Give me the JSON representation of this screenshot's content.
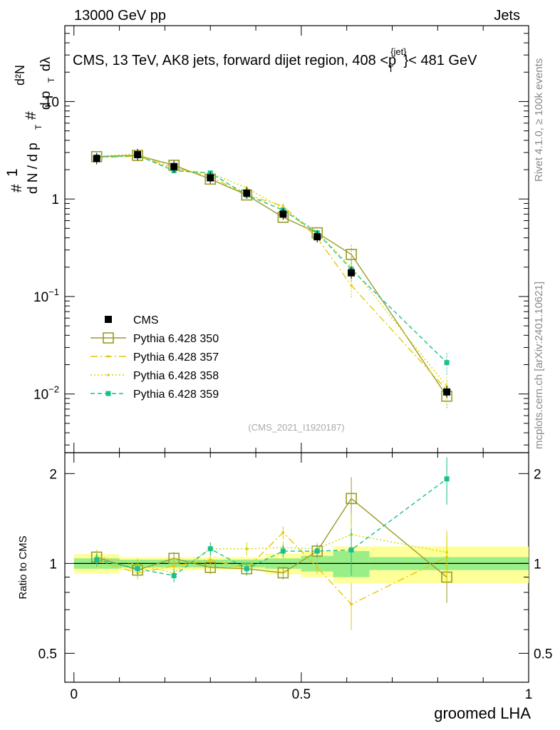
{
  "header": {
    "left": "13000 GeV pp",
    "right": "Jets"
  },
  "side": {
    "rivet": "Rivet 4.1.0, ≥ 100k events",
    "mcplots": "mcplots.cern.ch [arXiv:2401.10621]"
  },
  "analysis_tag": "(CMS_2021_I1920187)",
  "chart_data": [
    {
      "type": "line",
      "panel": "main",
      "title": "CMS, 13 TeV, AK8 jets, forward dijet region, 408 <p_T^{jet}< 481 GeV",
      "title_parts": {
        "pre": "CMS, 13 TeV, AK8 jets, forward dijet region, 408 <p",
        "sup": "{jet}",
        "sub": "T",
        "post": "}< 481 GeV"
      },
      "ylabel": "1/N dN/dp_T d²N/dp_T dλ",
      "ylabel_parts": {
        "hash": "#",
        "one": "1",
        "dN": "d N / d p",
        "dNsub": "T",
        "d2N": "d²N",
        "dpt": "d p",
        "dptsub": "T",
        "dl": "dλ"
      },
      "yscale": "log",
      "ylim": [
        0.0025,
        60
      ],
      "yticks": [
        {
          "value": 0.01,
          "base": "10",
          "exp": "−2"
        },
        {
          "value": 0.1,
          "base": "10",
          "exp": "−1"
        },
        {
          "value": 1,
          "base": "1",
          "exp": ""
        },
        {
          "value": 10,
          "base": "10",
          "exp": ""
        }
      ],
      "xlim": [
        -0.02,
        1.0
      ],
      "legend_position": "lower-left",
      "series": [
        {
          "name": "CMS",
          "style": "data",
          "color": "#000000",
          "x": [
            0.05,
            0.14,
            0.22,
            0.3,
            0.38,
            0.46,
            0.535,
            0.61,
            0.82
          ],
          "y": [
            2.6,
            2.85,
            2.15,
            1.65,
            1.15,
            0.7,
            0.41,
            0.175,
            0.0105
          ]
        },
        {
          "name": "Pythia 6.428 350",
          "style": "open-square-solid",
          "color": "#9a9a2a",
          "x": [
            0.05,
            0.14,
            0.22,
            0.3,
            0.38,
            0.46,
            0.535,
            0.61,
            0.82
          ],
          "y": [
            2.72,
            2.8,
            2.22,
            1.6,
            1.1,
            0.65,
            0.45,
            0.27,
            0.0095
          ]
        },
        {
          "name": "Pythia 6.428 357",
          "style": "dashdot",
          "color": "#e6c800",
          "x": [
            0.05,
            0.14,
            0.22,
            0.3,
            0.38,
            0.46,
            0.535,
            0.61,
            0.82
          ],
          "y": [
            2.65,
            2.75,
            2.1,
            1.7,
            1.1,
            0.85,
            0.4,
            0.13,
            0.011
          ]
        },
        {
          "name": "Pythia 6.428 358",
          "style": "dotted",
          "color": "#d4d400",
          "x": [
            0.05,
            0.14,
            0.22,
            0.3,
            0.38,
            0.46,
            0.535,
            0.61,
            0.82
          ],
          "y": [
            2.75,
            2.9,
            2.0,
            1.85,
            1.3,
            0.8,
            0.46,
            0.2,
            0.012
          ]
        },
        {
          "name": "Pythia 6.428 359",
          "style": "dashed-filled-square",
          "color": "#19c08c",
          "x": [
            0.05,
            0.14,
            0.22,
            0.3,
            0.38,
            0.46,
            0.535,
            0.61,
            0.82
          ],
          "y": [
            2.7,
            2.8,
            1.95,
            1.85,
            1.1,
            0.77,
            0.45,
            0.19,
            0.021
          ]
        }
      ]
    },
    {
      "type": "line",
      "panel": "ratio",
      "ylabel": "Ratio to CMS",
      "xlabel": "groomed LHA",
      "yscale": "log",
      "ylim": [
        0.4,
        2.35
      ],
      "yticks": [
        0.5,
        1,
        2
      ],
      "xlim": [
        -0.02,
        1.0
      ],
      "xticks": [
        0,
        0.5,
        1
      ],
      "bins": [
        [
          0.0,
          0.1
        ],
        [
          0.1,
          0.18
        ],
        [
          0.18,
          0.26
        ],
        [
          0.26,
          0.34
        ],
        [
          0.34,
          0.42
        ],
        [
          0.42,
          0.5
        ],
        [
          0.5,
          0.57
        ],
        [
          0.57,
          0.65
        ],
        [
          0.65,
          1.0
        ]
      ],
      "band_outer": [
        0.075,
        0.05,
        0.05,
        0.05,
        0.05,
        0.08,
        0.1,
        0.14,
        0.14
      ],
      "band_inner": [
        0.04,
        0.03,
        0.03,
        0.03,
        0.03,
        0.04,
        0.06,
        0.1,
        0.05
      ],
      "series": [
        {
          "name": "Pythia 6.428 350",
          "color": "#9a9a2a",
          "x": [
            0.05,
            0.14,
            0.22,
            0.3,
            0.38,
            0.46,
            0.535,
            0.61,
            0.82
          ],
          "y": [
            1.05,
            0.95,
            1.04,
            0.97,
            0.96,
            0.93,
            1.1,
            1.65,
            0.9
          ]
        },
        {
          "name": "Pythia 6.428 357",
          "color": "#e6c800",
          "x": [
            0.05,
            0.14,
            0.22,
            0.3,
            0.38,
            0.46,
            0.535,
            0.61,
            0.82
          ],
          "y": [
            1.02,
            0.93,
            0.98,
            1.03,
            0.96,
            1.27,
            0.97,
            0.73,
            1.05
          ]
        },
        {
          "name": "Pythia 6.428 358",
          "color": "#d4d400",
          "x": [
            0.05,
            0.14,
            0.22,
            0.3,
            0.38,
            0.46,
            0.535,
            0.61,
            0.82
          ],
          "y": [
            1.06,
            0.99,
            0.93,
            1.12,
            1.12,
            1.13,
            1.12,
            1.25,
            1.09
          ]
        },
        {
          "name": "Pythia 6.428 359",
          "color": "#19c08c",
          "x": [
            0.05,
            0.14,
            0.22,
            0.3,
            0.38,
            0.46,
            0.535,
            0.61,
            0.82
          ],
          "y": [
            1.03,
            0.96,
            0.91,
            1.12,
            0.96,
            1.1,
            1.1,
            1.11,
            1.92
          ]
        }
      ]
    }
  ]
}
